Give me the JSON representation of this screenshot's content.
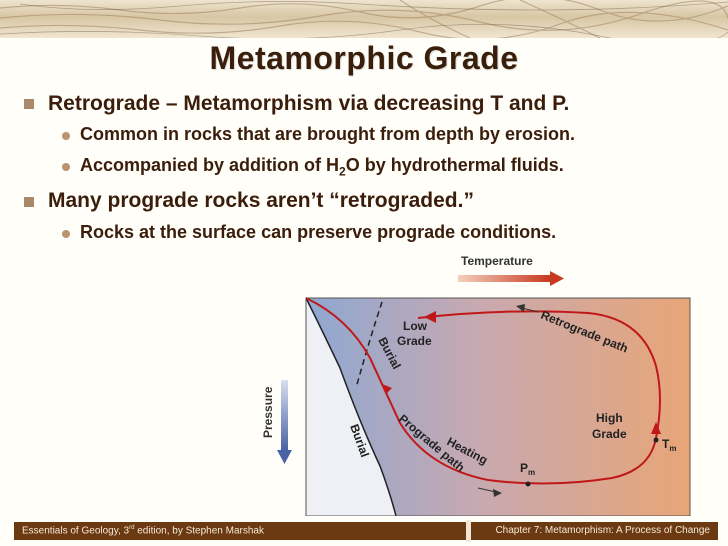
{
  "slide": {
    "title": "Metamorphic Grade",
    "bullets": [
      {
        "text": "Retrograde – Metamorphism via decreasing T and P."
      },
      {
        "text": "Common in rocks that are brought from depth by erosion."
      },
      {
        "pre": "Accompanied by addition of H",
        "sub": "2",
        "post": "O by hydrothermal fluids."
      },
      {
        "text": "Many prograde rocks aren’t “retrograded.”"
      },
      {
        "text": "Rocks at the surface can preserve prograde conditions."
      }
    ]
  },
  "diagram": {
    "temperature_label": "Temperature",
    "pressure_label": "Pressure",
    "low_grade_label": "Low",
    "low_grade_label2": "Grade",
    "high_grade_label": "High",
    "high_grade_label2": "Grade",
    "burial_curve_label": "Burial",
    "burial_path_label": "Burial",
    "prograde_label": "Prograde path",
    "heating_label": "Heating",
    "retrograde_label": "Retrograde path",
    "pm_label": "P",
    "pm_sub": "m",
    "tm_label": "T",
    "tm_sub": "m",
    "colors": {
      "cool": "#8aa3cf",
      "warm": "#e5a47a",
      "path": "#c01818",
      "arrow": "#3a3a3a"
    }
  },
  "footer": {
    "left_pre": "Essentials of Geology, 3",
    "left_sup": "rd",
    "left_post": " edition, by Stephen Marshak",
    "right": "Chapter 7:  Metamorphism:  A Process of Change"
  }
}
